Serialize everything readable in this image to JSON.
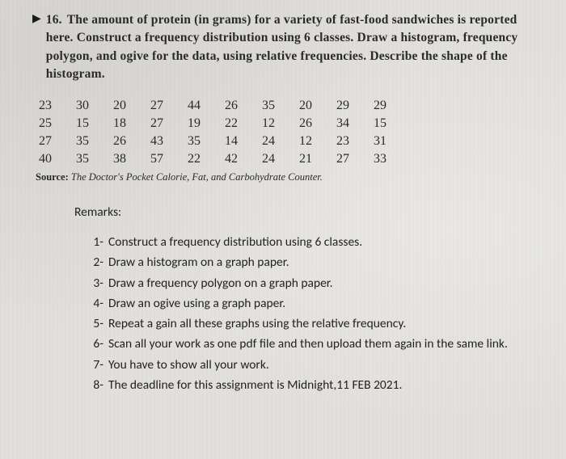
{
  "problem": {
    "marker": "▶",
    "number": "16.",
    "text": "The amount of protein (in grams) for a variety of fast-food sandwiches is reported here. Construct a frequency distribution using 6 classes. Draw a histogram, frequency polygon, and ogive for the data, using relative frequencies. Describe the shape of the histogram."
  },
  "data_grid": {
    "columns": 10,
    "rows": [
      [
        "23",
        "30",
        "20",
        "27",
        "44",
        "26",
        "35",
        "20",
        "29",
        "29"
      ],
      [
        "25",
        "15",
        "18",
        "27",
        "19",
        "22",
        "12",
        "26",
        "34",
        "15"
      ],
      [
        "27",
        "35",
        "26",
        "43",
        "35",
        "14",
        "24",
        "12",
        "23",
        "31"
      ],
      [
        "40",
        "35",
        "38",
        "57",
        "22",
        "42",
        "24",
        "21",
        "27",
        "33"
      ]
    ]
  },
  "source": {
    "label": "Source:",
    "title": "The Doctor's Pocket Calorie, Fat, and Carbohydrate Counter."
  },
  "remarks": {
    "title": "Remarks:",
    "items": [
      {
        "n": "1-",
        "t": "Construct a frequency distribution using 6 classes."
      },
      {
        "n": "2-",
        "t": "Draw a histogram on a graph paper."
      },
      {
        "n": "3-",
        "t": "Draw a frequency polygon on a graph paper."
      },
      {
        "n": "4-",
        "t": "Draw an ogive using a graph paper."
      },
      {
        "n": "5-",
        "t": "Repeat a gain all these graphs using the relative frequency."
      },
      {
        "n": "6-",
        "t": "Scan all your work as one pdf file and then upload them again in the same link."
      },
      {
        "n": "7-",
        "t": "You have to show all your work."
      },
      {
        "n": "8-",
        "t": "The deadline for this assignment is Midnight,11 FEB 2021."
      }
    ]
  }
}
